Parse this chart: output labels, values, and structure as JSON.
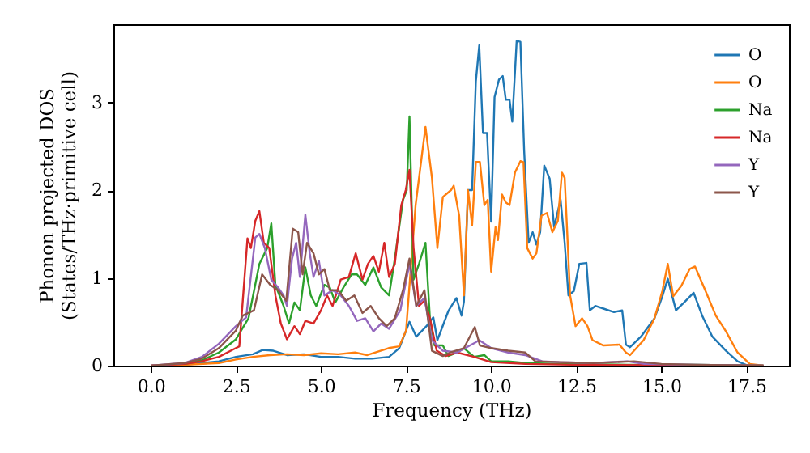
{
  "chart_data": {
    "type": "line",
    "xlabel": "Frequency (THz)",
    "ylabel": "Phonon projected DOS\n(States/THz·primitive cell)",
    "xlim": [
      -1.1,
      18.75
    ],
    "ylim": [
      0,
      3.89
    ],
    "xticks": [
      {
        "value": 0,
        "label": "0.0"
      },
      {
        "value": 2.5,
        "label": "2.5"
      },
      {
        "value": 5,
        "label": "5.0"
      },
      {
        "value": 7.5,
        "label": "7.5"
      },
      {
        "value": 10,
        "label": "10.0"
      },
      {
        "value": 12.5,
        "label": "12.5"
      },
      {
        "value": 15,
        "label": "15.0"
      },
      {
        "value": 17.5,
        "label": "17.5"
      }
    ],
    "yticks": [
      0,
      1,
      2,
      3
    ],
    "grid": false,
    "legend": "top right",
    "line_style": "solid",
    "marker": "none",
    "series": [
      {
        "name": "O",
        "color": "#1f77b4",
        "x": [
          0,
          1,
          2,
          2.5,
          3,
          3.3,
          3.6,
          4,
          4.5,
          5,
          5.5,
          6,
          6.5,
          7,
          7.3,
          7.6,
          7.8,
          8.1,
          8.3,
          8.42,
          8.74,
          8.98,
          9.13,
          9.2,
          9.32,
          9.44,
          9.55,
          9.65,
          9.76,
          9.88,
          10.0,
          10.1,
          10.23,
          10.34,
          10.43,
          10.54,
          10.62,
          10.75,
          10.86,
          10.97,
          11.1,
          11.22,
          11.33,
          11.44,
          11.56,
          11.72,
          11.85,
          12.04,
          12.16,
          12.27,
          12.43,
          12.59,
          12.8,
          12.9,
          13.06,
          13.3,
          13.61,
          13.85,
          13.96,
          14.08,
          14.4,
          14.8,
          15.03,
          15.19,
          15.43,
          15.67,
          15.95,
          16.2,
          16.5,
          16.9,
          17.24,
          17.55,
          18.0
        ],
        "values": [
          0,
          0.01,
          0.05,
          0.1,
          0.13,
          0.18,
          0.17,
          0.12,
          0.13,
          0.1,
          0.1,
          0.08,
          0.08,
          0.1,
          0.2,
          0.5,
          0.33,
          0.45,
          0.55,
          0.29,
          0.62,
          0.77,
          0.57,
          0.73,
          2.0,
          2.0,
          3.24,
          3.65,
          2.65,
          2.65,
          1.64,
          3.06,
          3.26,
          3.3,
          3.03,
          3.03,
          2.78,
          3.7,
          3.69,
          2.45,
          1.4,
          1.52,
          1.38,
          1.52,
          2.28,
          2.13,
          1.58,
          1.89,
          1.4,
          0.8,
          0.85,
          1.16,
          1.17,
          0.63,
          0.68,
          0.65,
          0.61,
          0.63,
          0.24,
          0.21,
          0.33,
          0.54,
          0.79,
          0.99,
          0.63,
          0.72,
          0.83,
          0.57,
          0.33,
          0.17,
          0.05,
          0.0,
          0
        ]
      },
      {
        "name": "O",
        "color": "#ff7f0e",
        "x": [
          0,
          1,
          2,
          2.5,
          3,
          3.5,
          4,
          4.5,
          5,
          5.5,
          6,
          6.36,
          6.99,
          7.3,
          7.5,
          7.78,
          8.07,
          8.26,
          8.42,
          8.58,
          8.82,
          8.9,
          9.06,
          9.2,
          9.32,
          9.44,
          9.55,
          9.67,
          9.8,
          9.9,
          10.0,
          10.13,
          10.2,
          10.32,
          10.43,
          10.54,
          10.7,
          10.86,
          10.95,
          11.06,
          11.22,
          11.33,
          11.48,
          11.64,
          11.8,
          11.96,
          12.08,
          12.16,
          12.32,
          12.48,
          12.67,
          12.83,
          12.98,
          13.3,
          13.77,
          13.96,
          14.08,
          14.48,
          14.8,
          15.03,
          15.19,
          15.35,
          15.59,
          15.83,
          15.99,
          16.3,
          16.6,
          16.9,
          17.24,
          17.6,
          18.0
        ],
        "values": [
          0,
          0.01,
          0.03,
          0.07,
          0.1,
          0.12,
          0.13,
          0.12,
          0.14,
          0.13,
          0.15,
          0.12,
          0.2,
          0.22,
          0.4,
          1.83,
          2.72,
          2.14,
          1.34,
          1.92,
          2.0,
          2.05,
          1.71,
          0.8,
          2.0,
          1.6,
          2.32,
          2.32,
          1.83,
          1.89,
          1.07,
          1.58,
          1.43,
          1.95,
          1.86,
          1.83,
          2.2,
          2.33,
          2.32,
          1.34,
          1.22,
          1.28,
          1.71,
          1.74,
          1.52,
          1.65,
          2.2,
          2.14,
          0.8,
          0.45,
          0.54,
          0.45,
          0.29,
          0.23,
          0.24,
          0.15,
          0.12,
          0.29,
          0.54,
          0.85,
          1.16,
          0.79,
          0.91,
          1.1,
          1.13,
          0.85,
          0.57,
          0.39,
          0.15,
          0.02,
          0
        ]
      },
      {
        "name": "Na",
        "color": "#2ca02c",
        "x": [
          1,
          1.5,
          2,
          2.5,
          2.87,
          3.19,
          3.42,
          3.54,
          3.66,
          3.9,
          4.06,
          4.22,
          4.38,
          4.54,
          4.7,
          4.86,
          5.1,
          5.26,
          5.42,
          5.66,
          5.9,
          6.06,
          6.3,
          6.54,
          6.77,
          7.0,
          7.17,
          7.41,
          7.52,
          7.6,
          7.72,
          7.88,
          8.07,
          8.2,
          8.34,
          8.58,
          8.74,
          9.0,
          9.2,
          9.5,
          9.8,
          10.0,
          10.5,
          11,
          12,
          14,
          16,
          18
        ],
        "values": [
          0.02,
          0.06,
          0.15,
          0.3,
          0.54,
          1.16,
          1.34,
          1.62,
          0.92,
          0.68,
          0.48,
          0.72,
          0.63,
          1.12,
          0.8,
          0.68,
          0.92,
          0.89,
          0.72,
          0.89,
          1.04,
          1.04,
          0.92,
          1.12,
          0.89,
          0.8,
          1.22,
          1.89,
          2.0,
          2.84,
          0.98,
          1.16,
          1.4,
          0.54,
          0.23,
          0.23,
          0.11,
          0.15,
          0.2,
          0.1,
          0.12,
          0.05,
          0.05,
          0.03,
          0.02,
          0.01,
          0.01,
          0
        ]
      },
      {
        "name": "Na",
        "color": "#d62728",
        "x": [
          0,
          1,
          1.5,
          2,
          2.5,
          2.6,
          2.84,
          2.94,
          3.07,
          3.19,
          3.32,
          3.48,
          3.66,
          3.82,
          4.0,
          4.22,
          4.38,
          4.54,
          4.78,
          5.0,
          5.18,
          5.34,
          5.58,
          5.82,
          6.02,
          6.22,
          6.38,
          6.54,
          6.7,
          6.86,
          7.0,
          7.17,
          7.36,
          7.49,
          7.6,
          7.72,
          7.88,
          8.04,
          8.2,
          8.4,
          8.66,
          9.0,
          9.5,
          10,
          11,
          12.5,
          18
        ],
        "values": [
          0,
          0.02,
          0.05,
          0.1,
          0.2,
          0.22,
          1.45,
          1.34,
          1.65,
          1.76,
          1.4,
          1.34,
          0.8,
          0.48,
          0.3,
          0.45,
          0.36,
          0.51,
          0.48,
          0.63,
          0.8,
          0.68,
          0.98,
          1.01,
          1.28,
          0.98,
          1.16,
          1.25,
          1.07,
          1.4,
          1.01,
          1.16,
          1.83,
          2.0,
          2.23,
          1.34,
          0.68,
          0.74,
          0.54,
          0.17,
          0.11,
          0.15,
          0.1,
          0.04,
          0.02,
          0.01,
          0
        ]
      },
      {
        "name": "Y",
        "color": "#9467bd",
        "x": [
          0,
          1,
          1.5,
          2,
          2.5,
          2.8,
          3.07,
          3.19,
          3.35,
          3.54,
          3.74,
          3.9,
          4.0,
          4.15,
          4.27,
          4.38,
          4.54,
          4.67,
          4.78,
          4.94,
          5.1,
          5.34,
          5.58,
          5.82,
          6.06,
          6.3,
          6.54,
          6.77,
          7.0,
          7.33,
          7.6,
          7.8,
          8.04,
          8.26,
          8.58,
          9.0,
          9.52,
          9.65,
          10,
          10.5,
          11,
          11.5,
          12,
          13,
          14,
          14.5,
          16,
          18
        ],
        "values": [
          0,
          0.03,
          0.1,
          0.25,
          0.45,
          0.55,
          1.46,
          1.5,
          1.34,
          0.98,
          0.89,
          0.8,
          0.68,
          1.22,
          1.4,
          1.01,
          1.72,
          1.28,
          1.01,
          1.19,
          0.8,
          0.86,
          0.8,
          0.68,
          0.51,
          0.54,
          0.39,
          0.48,
          0.42,
          0.63,
          1.16,
          0.68,
          0.77,
          0.29,
          0.17,
          0.15,
          0.26,
          0.29,
          0.2,
          0.15,
          0.12,
          0.05,
          0.04,
          0.03,
          0.05,
          0.02,
          0.01,
          0
        ]
      },
      {
        "name": "Y",
        "color": "#8c564b",
        "x": [
          0,
          1,
          1.5,
          2,
          2.5,
          2.7,
          3.03,
          3.27,
          3.51,
          3.74,
          3.98,
          4.17,
          4.33,
          4.46,
          4.59,
          4.78,
          4.94,
          5.1,
          5.26,
          5.5,
          5.74,
          5.98,
          6.22,
          6.46,
          6.7,
          6.93,
          7.17,
          7.41,
          7.6,
          7.8,
          8.04,
          8.26,
          8.58,
          8.8,
          9.2,
          9.52,
          9.67,
          10,
          10.5,
          11,
          11.3,
          12,
          13,
          14.2,
          15,
          16,
          18
        ],
        "values": [
          0,
          0.03,
          0.08,
          0.2,
          0.4,
          0.57,
          0.63,
          1.04,
          0.92,
          0.86,
          0.74,
          1.56,
          1.52,
          1.04,
          1.4,
          1.28,
          1.04,
          1.1,
          0.86,
          0.86,
          0.74,
          0.8,
          0.6,
          0.68,
          0.54,
          0.45,
          0.54,
          0.86,
          1.22,
          0.68,
          0.86,
          0.17,
          0.11,
          0.15,
          0.2,
          0.44,
          0.23,
          0.2,
          0.17,
          0.15,
          0.05,
          0.04,
          0.03,
          0.05,
          0.02,
          0.01,
          0
        ]
      }
    ]
  }
}
